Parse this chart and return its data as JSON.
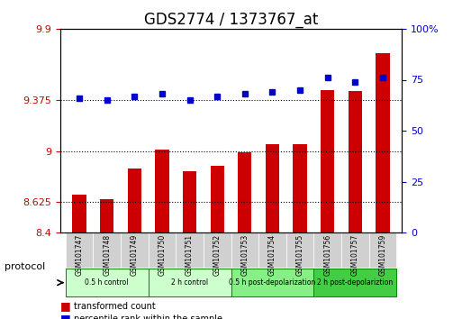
{
  "title": "GDS2774 / 1373767_at",
  "samples": [
    "GSM101747",
    "GSM101748",
    "GSM101749",
    "GSM101750",
    "GSM101751",
    "GSM101752",
    "GSM101753",
    "GSM101754",
    "GSM101755",
    "GSM101756",
    "GSM101757",
    "GSM101759"
  ],
  "bar_values": [
    8.68,
    8.65,
    8.87,
    9.01,
    8.85,
    8.89,
    8.99,
    9.05,
    9.05,
    9.45,
    9.44,
    9.72
  ],
  "scatter_values": [
    66,
    65,
    67,
    68,
    65,
    67,
    68,
    69,
    70,
    76,
    74,
    76
  ],
  "ylim_left": [
    8.4,
    9.9
  ],
  "ylim_right": [
    0,
    100
  ],
  "yticks_left": [
    8.4,
    8.625,
    9.0,
    9.375,
    9.9
  ],
  "yticks_right": [
    0,
    25,
    50,
    75,
    100
  ],
  "ytick_labels_left": [
    "8.4",
    "8.625",
    "9",
    "9.375",
    "9.9"
  ],
  "ytick_labels_right": [
    "0",
    "25",
    "50",
    "75",
    "100%"
  ],
  "hlines": [
    8.625,
    9.0,
    9.375
  ],
  "bar_color": "#cc0000",
  "scatter_color": "#0000cc",
  "bar_bottom": 8.4,
  "groups": [
    {
      "label": "0.5 h control",
      "start": 0,
      "end": 3,
      "color": "#ccffcc"
    },
    {
      "label": "2 h control",
      "start": 3,
      "end": 6,
      "color": "#ccffcc"
    },
    {
      "label": "0.5 h post-depolarization",
      "start": 6,
      "end": 9,
      "color": "#88ee88"
    },
    {
      "label": "2 h post-depolariztion",
      "start": 9,
      "end": 12,
      "color": "#44dd44"
    }
  ],
  "protocol_label": "protocol",
  "xlabel_color": "#cc0000",
  "title_fontsize": 12,
  "tick_label_color_left": "#cc0000",
  "tick_label_color_right": "#0000cc"
}
